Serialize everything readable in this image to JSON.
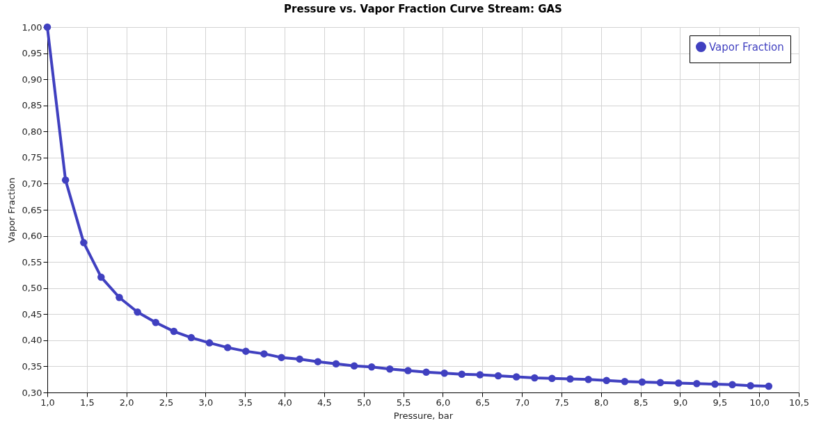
{
  "chart_data": {
    "type": "line",
    "title": "Pressure vs. Vapor Fraction Curve Stream: GAS",
    "xlabel": "Pressure, bar",
    "ylabel": "Vapor Fraction",
    "x": [
      1.0,
      1.23,
      1.46,
      1.68,
      1.91,
      2.14,
      2.37,
      2.6,
      2.82,
      3.05,
      3.28,
      3.51,
      3.74,
      3.96,
      4.19,
      4.42,
      4.65,
      4.88,
      5.1,
      5.33,
      5.56,
      5.79,
      6.02,
      6.24,
      6.47,
      6.7,
      6.93,
      7.16,
      7.38,
      7.61,
      7.84,
      8.07,
      8.3,
      8.52,
      8.75,
      8.98,
      9.21,
      9.44,
      9.66,
      9.89,
      10.12
    ],
    "series": [
      {
        "name": "Vapor Fraction",
        "color": "#4040c0",
        "values": [
          1.0,
          0.707,
          0.587,
          0.521,
          0.482,
          0.454,
          0.434,
          0.417,
          0.405,
          0.395,
          0.386,
          0.379,
          0.374,
          0.367,
          0.364,
          0.359,
          0.355,
          0.351,
          0.349,
          0.345,
          0.342,
          0.339,
          0.337,
          0.335,
          0.334,
          0.332,
          0.33,
          0.328,
          0.327,
          0.326,
          0.325,
          0.323,
          0.321,
          0.32,
          0.319,
          0.318,
          0.317,
          0.316,
          0.315,
          0.313,
          0.312
        ]
      }
    ],
    "xlim": [
      1.0,
      10.5
    ],
    "xticks": [
      {
        "value": 1.0,
        "label": "1,0"
      },
      {
        "value": 1.5,
        "label": "1,5"
      },
      {
        "value": 2.0,
        "label": "2,0"
      },
      {
        "value": 2.5,
        "label": "2,5"
      },
      {
        "value": 3.0,
        "label": "3,0"
      },
      {
        "value": 3.5,
        "label": "3,5"
      },
      {
        "value": 4.0,
        "label": "4,0"
      },
      {
        "value": 4.5,
        "label": "4,5"
      },
      {
        "value": 5.0,
        "label": "5,0"
      },
      {
        "value": 5.5,
        "label": "5,5"
      },
      {
        "value": 6.0,
        "label": "6,0"
      },
      {
        "value": 6.5,
        "label": "6,5"
      },
      {
        "value": 7.0,
        "label": "7,0"
      },
      {
        "value": 7.5,
        "label": "7,5"
      },
      {
        "value": 8.0,
        "label": "8,0"
      },
      {
        "value": 8.5,
        "label": "8,5"
      },
      {
        "value": 9.0,
        "label": "9,0"
      },
      {
        "value": 9.5,
        "label": "9,5"
      },
      {
        "value": 10.0,
        "label": "10,0"
      },
      {
        "value": 10.5,
        "label": "10,5"
      }
    ],
    "ylim": [
      0.3,
      1.0
    ],
    "yticks": [
      {
        "value": 0.3,
        "label": "0,30"
      },
      {
        "value": 0.35,
        "label": "0,35"
      },
      {
        "value": 0.4,
        "label": "0,40"
      },
      {
        "value": 0.45,
        "label": "0,45"
      },
      {
        "value": 0.5,
        "label": "0,50"
      },
      {
        "value": 0.55,
        "label": "0,55"
      },
      {
        "value": 0.6,
        "label": "0,60"
      },
      {
        "value": 0.65,
        "label": "0,65"
      },
      {
        "value": 0.7,
        "label": "0,70"
      },
      {
        "value": 0.75,
        "label": "0,75"
      },
      {
        "value": 0.8,
        "label": "0,80"
      },
      {
        "value": 0.85,
        "label": "0,85"
      },
      {
        "value": 0.9,
        "label": "0,90"
      },
      {
        "value": 0.95,
        "label": "0,95"
      },
      {
        "value": 1.0,
        "label": "1,00"
      }
    ],
    "grid": true,
    "legend": "top right",
    "marker": "circle",
    "line_style": "solid"
  }
}
